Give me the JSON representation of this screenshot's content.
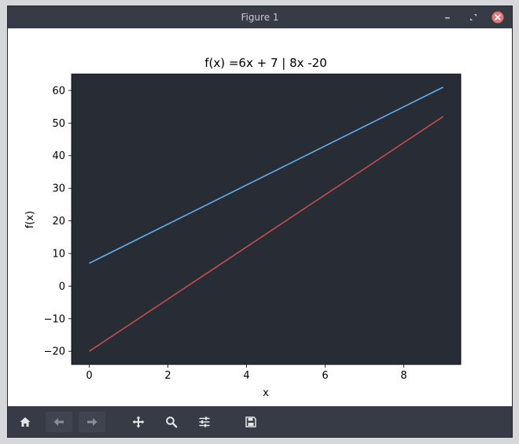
{
  "window": {
    "title": "Figure 1"
  },
  "chart_data": {
    "type": "line",
    "title": "f(x) =6x + 7 | 8x -20",
    "xlabel": "x",
    "ylabel": "f(x)",
    "xlim": [
      -0.45,
      9.45
    ],
    "ylim": [
      -24.05,
      65.05
    ],
    "xticks": [
      0,
      2,
      4,
      6,
      8
    ],
    "yticks": [
      -20,
      -10,
      0,
      10,
      20,
      30,
      40,
      50,
      60
    ],
    "grid": false,
    "legend": "none",
    "background": "#282c34",
    "series": [
      {
        "x": [
          0,
          9
        ],
        "y": [
          7,
          61
        ],
        "color": "#61afef"
      },
      {
        "x": [
          0,
          9
        ],
        "y": [
          -20,
          52
        ],
        "color": "#c0504d"
      }
    ]
  },
  "toolbar": {
    "buttons": [
      {
        "icon": "home-icon"
      },
      {
        "icon": "arrow-left-icon"
      },
      {
        "icon": "arrow-right-icon"
      },
      {
        "icon": "move-icon"
      },
      {
        "icon": "zoom-icon"
      },
      {
        "icon": "sliders-icon"
      },
      {
        "icon": "save-icon"
      }
    ]
  }
}
